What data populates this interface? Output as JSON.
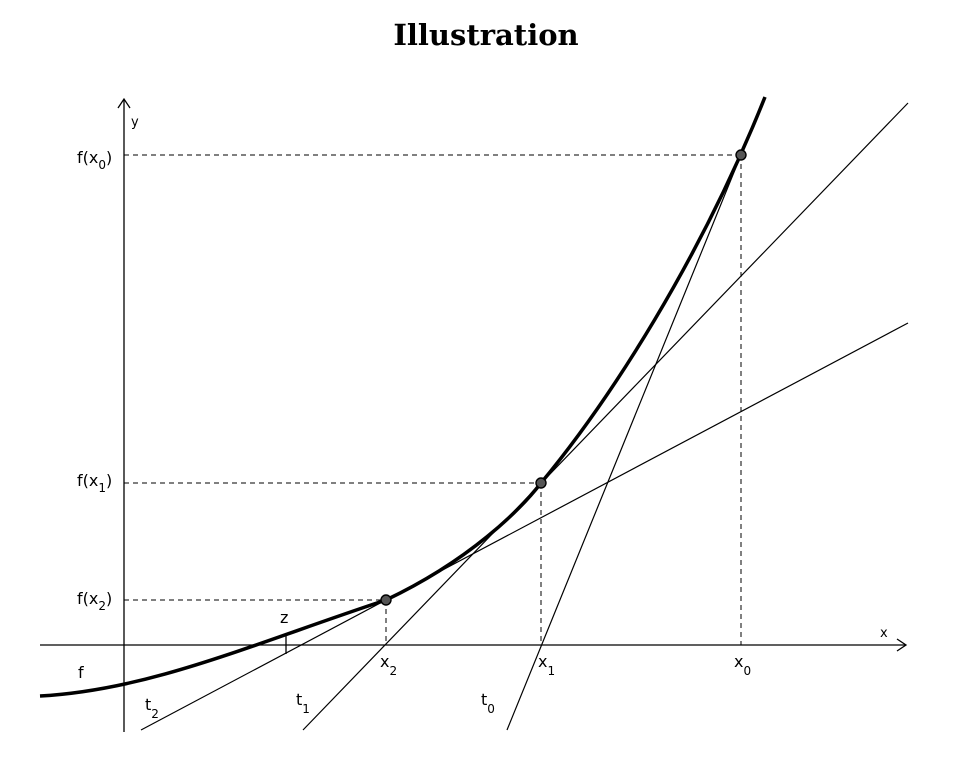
{
  "title": "Illustration",
  "axes": {
    "x_label": "x",
    "y_label": "y"
  },
  "function_label": "f",
  "root_label": "z",
  "iterates": [
    {
      "x": "x",
      "x_sub": "0",
      "fx": "f(x",
      "fx_sub": "0",
      "fx_close": ")",
      "tangent": "t",
      "tangent_sub": "0"
    },
    {
      "x": "x",
      "x_sub": "1",
      "fx": "f(x",
      "fx_sub": "1",
      "fx_close": ")",
      "tangent": "t",
      "tangent_sub": "1"
    },
    {
      "x": "x",
      "x_sub": "2",
      "fx": "f(x",
      "fx_sub": "2",
      "fx_close": ")",
      "tangent": "t",
      "tangent_sub": "2"
    }
  ]
}
